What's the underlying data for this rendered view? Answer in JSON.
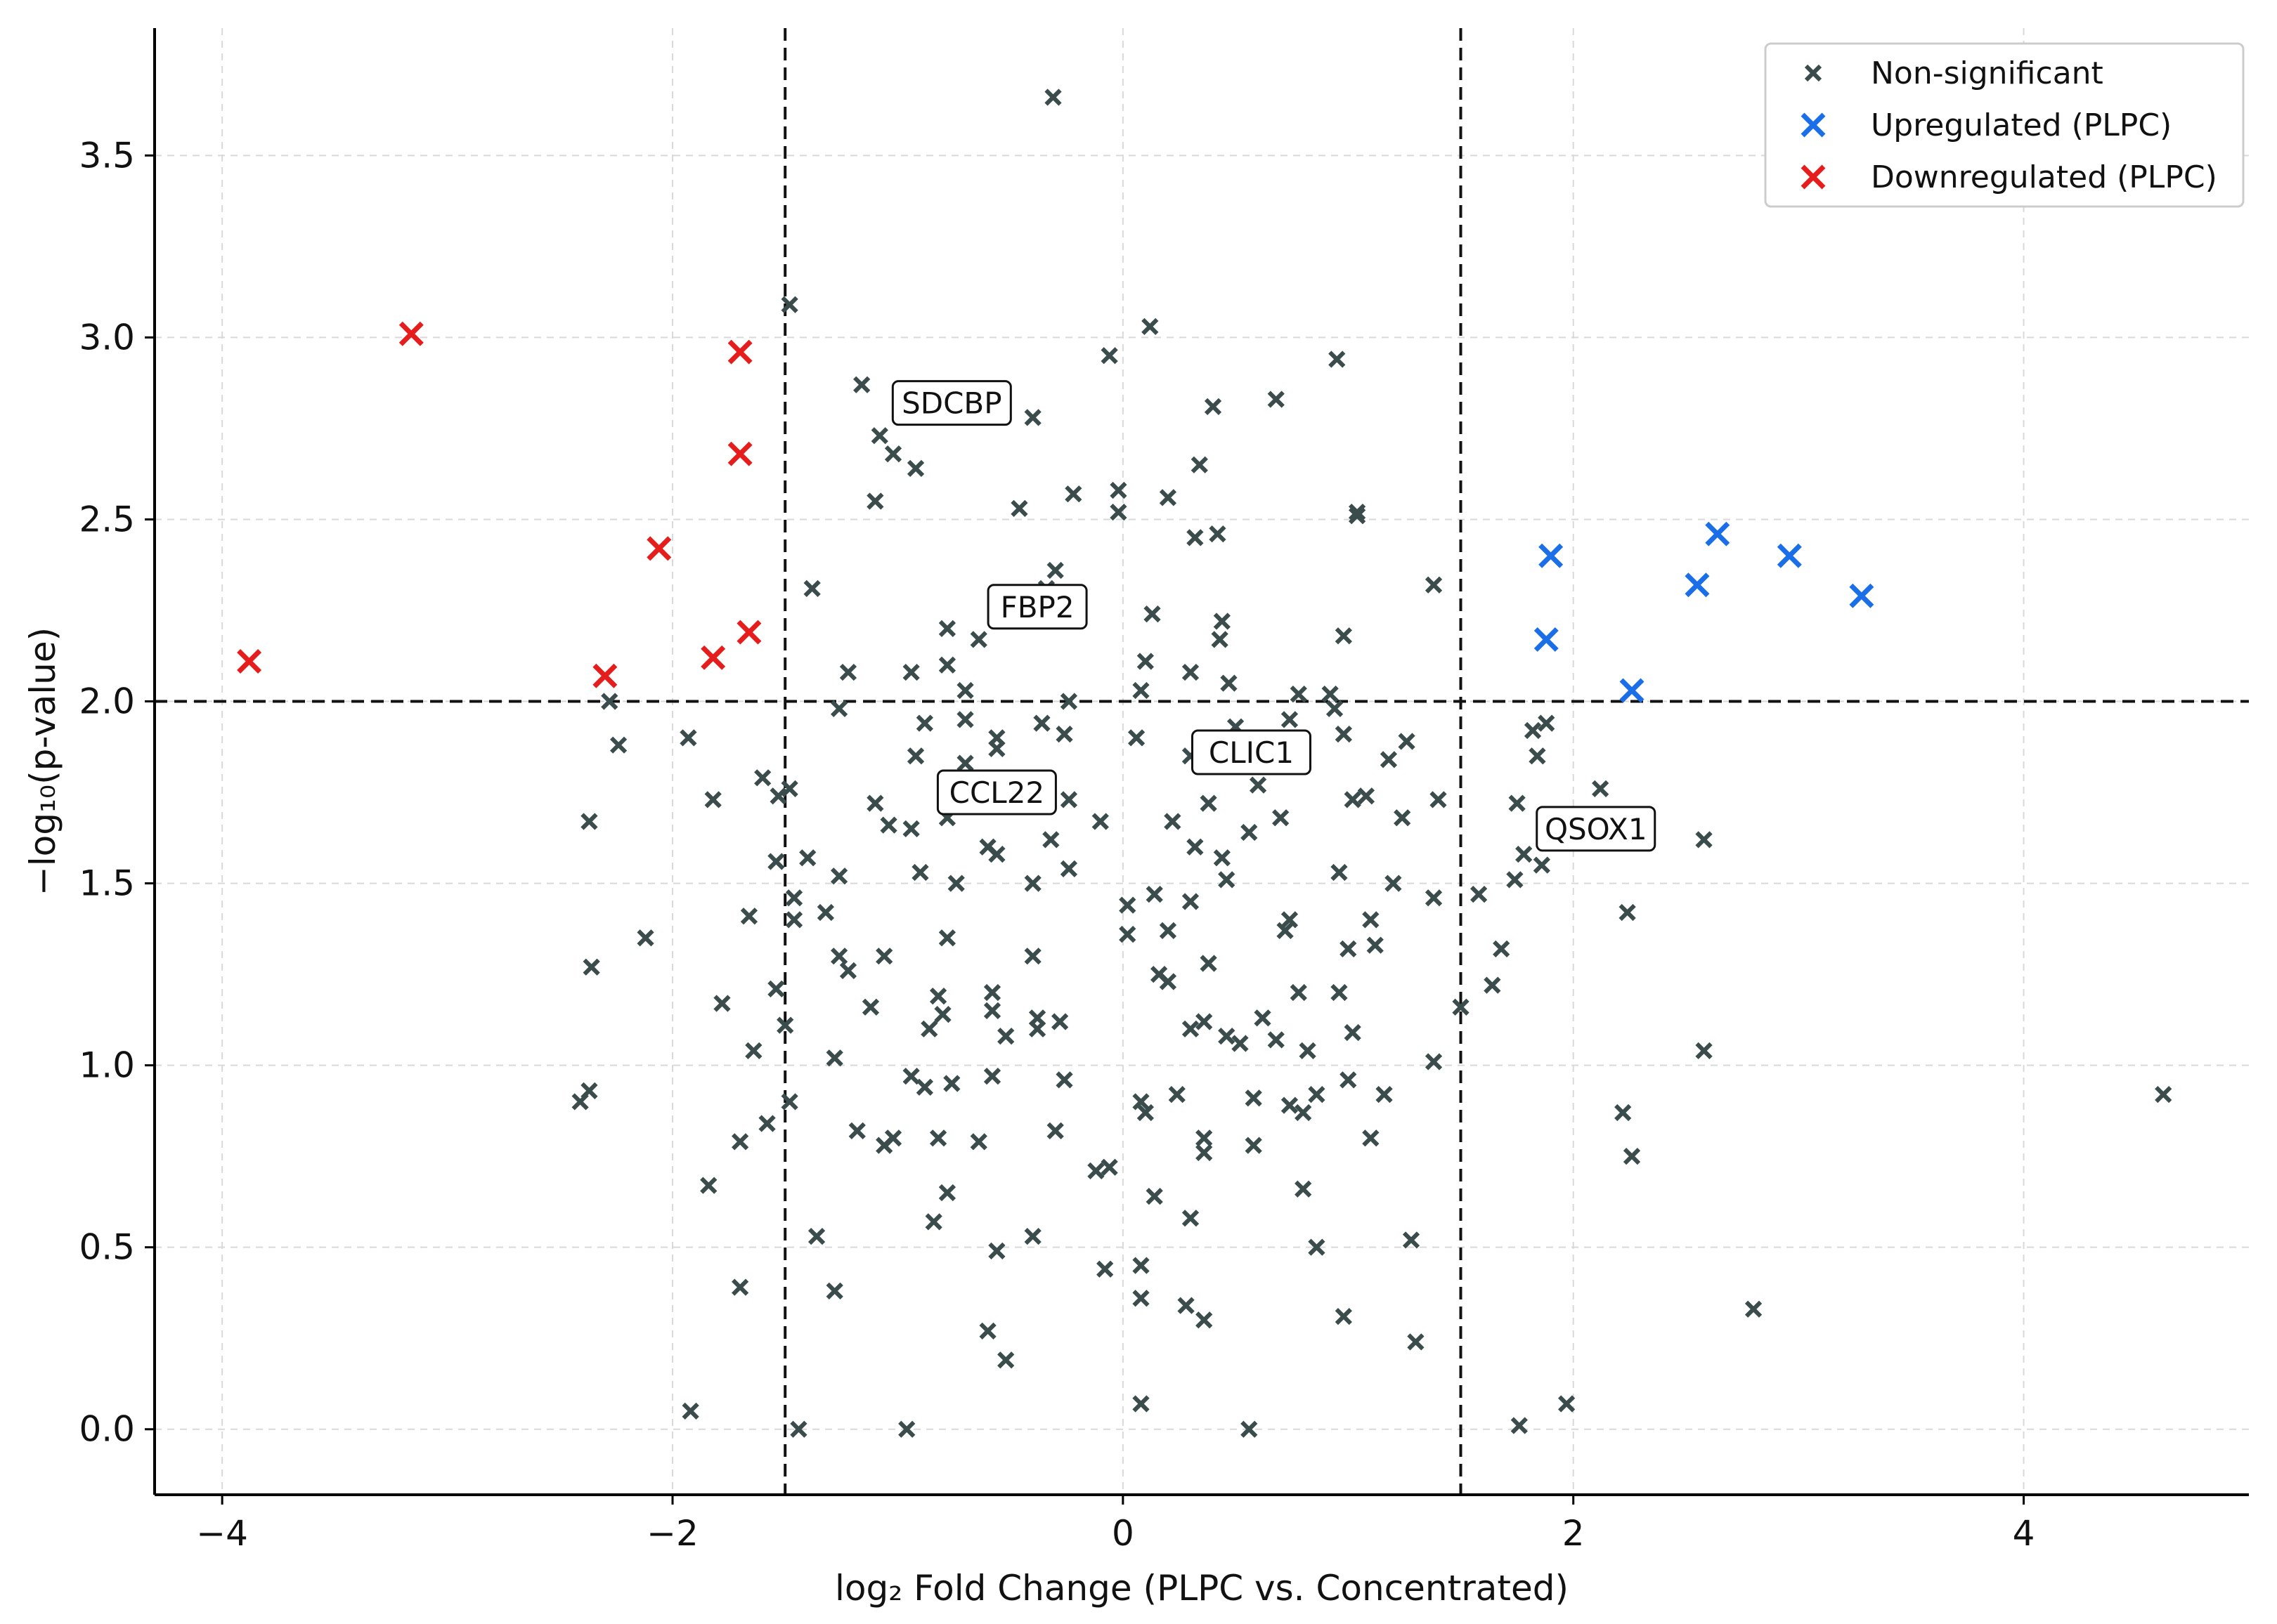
{
  "chart_data": {
    "type": "scatter",
    "title": "",
    "xlabel": "log₂ Fold Change (PLPC vs. Concentrated)",
    "ylabel": "−log₁₀(p-value)",
    "xlim": [
      -4.3,
      5.0
    ],
    "ylim": [
      -0.18,
      3.85
    ],
    "x_ticks": [
      -4,
      -2,
      0,
      2,
      4
    ],
    "x_tick_labels": [
      "−4",
      "−2",
      "0",
      "2",
      "4"
    ],
    "y_ticks": [
      0.0,
      0.5,
      1.0,
      1.5,
      2.0,
      2.5,
      3.0,
      3.5
    ],
    "y_tick_labels": [
      "0.0",
      "0.5",
      "1.0",
      "1.5",
      "2.0",
      "2.5",
      "3.0",
      "3.5"
    ],
    "grid": true,
    "legend_position": "top-right",
    "colors": {
      "nonsig": "#3b4c4c",
      "up": "#1a6fe8",
      "down": "#e51d1d",
      "threshold": "#111111",
      "grid": "#d9d9d9"
    },
    "thresholds": {
      "x": [
        -1.5,
        1.5
      ],
      "y": 2.0
    },
    "series": [
      {
        "name": "Non-significant",
        "color": "#3b4c4c",
        "points": [
          [
            -0.31,
            3.66
          ],
          [
            -1.48,
            3.09
          ],
          [
            0.12,
            3.03
          ],
          [
            -0.06,
            2.95
          ],
          [
            0.95,
            2.94
          ],
          [
            -1.16,
            2.87
          ],
          [
            0.68,
            2.83
          ],
          [
            0.4,
            2.81
          ],
          [
            -0.4,
            2.78
          ],
          [
            -1.08,
            2.73
          ],
          [
            -1.02,
            2.68
          ],
          [
            -0.92,
            2.64
          ],
          [
            0.34,
            2.65
          ],
          [
            -0.02,
            2.58
          ],
          [
            -0.22,
            2.57
          ],
          [
            0.2,
            2.56
          ],
          [
            -1.1,
            2.55
          ],
          [
            -0.02,
            2.52
          ],
          [
            -0.46,
            2.53
          ],
          [
            1.04,
            2.52
          ],
          [
            1.04,
            2.51
          ],
          [
            0.32,
            2.45
          ],
          [
            0.42,
            2.46
          ],
          [
            -0.3,
            2.36
          ],
          [
            -0.34,
            2.31
          ],
          [
            -1.38,
            2.31
          ],
          [
            1.38,
            2.32
          ],
          [
            0.13,
            2.24
          ],
          [
            0.44,
            2.22
          ],
          [
            0.43,
            2.17
          ],
          [
            -0.78,
            2.2
          ],
          [
            0.98,
            2.18
          ],
          [
            -0.64,
            2.17
          ],
          [
            0.1,
            2.11
          ],
          [
            -1.22,
            2.08
          ],
          [
            -0.78,
            2.1
          ],
          [
            -0.94,
            2.08
          ],
          [
            0.3,
            2.08
          ],
          [
            0.47,
            2.05
          ],
          [
            0.08,
            2.03
          ],
          [
            -0.7,
            2.03
          ],
          [
            -0.24,
            2.0
          ],
          [
            0.78,
            2.02
          ],
          [
            0.92,
            2.02
          ],
          [
            -1.26,
            1.98
          ],
          [
            0.94,
            1.98
          ],
          [
            -2.28,
            2.0
          ],
          [
            -0.88,
            1.94
          ],
          [
            -0.7,
            1.95
          ],
          [
            -0.36,
            1.94
          ],
          [
            0.5,
            1.93
          ],
          [
            0.74,
            1.95
          ],
          [
            -0.26,
            1.91
          ],
          [
            0.98,
            1.91
          ],
          [
            -1.93,
            1.9
          ],
          [
            -0.56,
            1.9
          ],
          [
            0.06,
            1.9
          ],
          [
            -0.56,
            1.87
          ],
          [
            1.26,
            1.89
          ],
          [
            -2.24,
            1.88
          ],
          [
            -0.92,
            1.85
          ],
          [
            -0.7,
            1.83
          ],
          [
            0.3,
            1.85
          ],
          [
            1.18,
            1.84
          ],
          [
            1.82,
            1.92
          ],
          [
            1.88,
            1.94
          ],
          [
            1.84,
            1.85
          ],
          [
            -1.6,
            1.79
          ],
          [
            -1.48,
            1.76
          ],
          [
            -1.53,
            1.74
          ],
          [
            0.6,
            1.77
          ],
          [
            0.38,
            1.72
          ],
          [
            1.02,
            1.73
          ],
          [
            1.08,
            1.74
          ],
          [
            1.4,
            1.73
          ],
          [
            2.12,
            1.76
          ],
          [
            -2.37,
            1.67
          ],
          [
            -1.82,
            1.73
          ],
          [
            -1.1,
            1.72
          ],
          [
            -0.24,
            1.73
          ],
          [
            -0.78,
            1.68
          ],
          [
            -0.94,
            1.65
          ],
          [
            -0.1,
            1.67
          ],
          [
            0.22,
            1.67
          ],
          [
            0.7,
            1.68
          ],
          [
            1.24,
            1.68
          ],
          [
            1.75,
            1.72
          ],
          [
            -1.04,
            1.66
          ],
          [
            0.56,
            1.64
          ],
          [
            -0.6,
            1.6
          ],
          [
            -0.32,
            1.62
          ],
          [
            0.32,
            1.6
          ],
          [
            1.78,
            1.58
          ],
          [
            1.86,
            1.55
          ],
          [
            2.58,
            1.62
          ],
          [
            -1.54,
            1.56
          ],
          [
            -1.4,
            1.57
          ],
          [
            -0.56,
            1.58
          ],
          [
            0.44,
            1.57
          ],
          [
            -0.9,
            1.53
          ],
          [
            -0.24,
            1.54
          ],
          [
            0.96,
            1.53
          ],
          [
            1.2,
            1.5
          ],
          [
            1.74,
            1.51
          ],
          [
            -1.46,
            1.46
          ],
          [
            -1.26,
            1.52
          ],
          [
            -0.74,
            1.5
          ],
          [
            -0.4,
            1.5
          ],
          [
            0.14,
            1.47
          ],
          [
            0.46,
            1.51
          ],
          [
            1.38,
            1.46
          ],
          [
            1.58,
            1.47
          ],
          [
            -1.66,
            1.41
          ],
          [
            -1.46,
            1.4
          ],
          [
            -1.32,
            1.42
          ],
          [
            0.02,
            1.44
          ],
          [
            0.3,
            1.45
          ],
          [
            0.74,
            1.4
          ],
          [
            1.1,
            1.4
          ],
          [
            2.24,
            1.42
          ],
          [
            -2.12,
            1.35
          ],
          [
            -1.26,
            1.3
          ],
          [
            -0.78,
            1.35
          ],
          [
            0.02,
            1.36
          ],
          [
            0.2,
            1.37
          ],
          [
            1.0,
            1.32
          ],
          [
            1.12,
            1.33
          ],
          [
            1.68,
            1.32
          ],
          [
            -2.36,
            1.27
          ],
          [
            -1.22,
            1.26
          ],
          [
            -1.06,
            1.3
          ],
          [
            -0.4,
            1.3
          ],
          [
            0.38,
            1.28
          ],
          [
            0.72,
            1.37
          ],
          [
            1.64,
            1.22
          ],
          [
            -1.54,
            1.21
          ],
          [
            -0.82,
            1.19
          ],
          [
            -0.58,
            1.2
          ],
          [
            0.16,
            1.25
          ],
          [
            0.78,
            1.2
          ],
          [
            0.96,
            1.2
          ],
          [
            1.5,
            1.16
          ],
          [
            -1.78,
            1.17
          ],
          [
            -1.12,
            1.16
          ],
          [
            -0.8,
            1.14
          ],
          [
            -0.58,
            1.15
          ],
          [
            -0.38,
            1.13
          ],
          [
            -0.28,
            1.12
          ],
          [
            0.2,
            1.23
          ],
          [
            0.62,
            1.13
          ],
          [
            -1.5,
            1.11
          ],
          [
            -0.86,
            1.1
          ],
          [
            -0.52,
            1.08
          ],
          [
            -0.38,
            1.1
          ],
          [
            0.3,
            1.1
          ],
          [
            0.46,
            1.08
          ],
          [
            0.68,
            1.07
          ],
          [
            1.02,
            1.09
          ],
          [
            -1.64,
            1.04
          ],
          [
            -1.28,
            1.02
          ],
          [
            0.36,
            1.12
          ],
          [
            0.52,
            1.06
          ],
          [
            0.82,
            1.04
          ],
          [
            1.38,
            1.01
          ],
          [
            2.58,
            1.04
          ],
          [
            -2.41,
            0.9
          ],
          [
            -2.37,
            0.93
          ],
          [
            -1.48,
            0.9
          ],
          [
            -0.94,
            0.97
          ],
          [
            -0.88,
            0.94
          ],
          [
            -0.76,
            0.95
          ],
          [
            -0.58,
            0.97
          ],
          [
            -0.26,
            0.96
          ],
          [
            0.08,
            0.9
          ],
          [
            0.24,
            0.92
          ],
          [
            0.58,
            0.91
          ],
          [
            0.86,
            0.92
          ],
          [
            1.0,
            0.96
          ],
          [
            1.16,
            0.92
          ],
          [
            4.62,
            0.92
          ],
          [
            -1.58,
            0.84
          ],
          [
            -1.18,
            0.82
          ],
          [
            -1.02,
            0.8
          ],
          [
            -0.82,
            0.8
          ],
          [
            -0.3,
            0.82
          ],
          [
            0.1,
            0.87
          ],
          [
            0.36,
            0.8
          ],
          [
            0.74,
            0.89
          ],
          [
            0.8,
            0.87
          ],
          [
            1.1,
            0.8
          ],
          [
            2.22,
            0.87
          ],
          [
            -1.7,
            0.79
          ],
          [
            -1.06,
            0.78
          ],
          [
            -0.64,
            0.79
          ],
          [
            -0.12,
            0.71
          ],
          [
            -0.06,
            0.72
          ],
          [
            0.36,
            0.76
          ],
          [
            0.58,
            0.78
          ],
          [
            2.26,
            0.75
          ],
          [
            -1.84,
            0.67
          ],
          [
            -0.78,
            0.65
          ],
          [
            0.14,
            0.64
          ],
          [
            0.8,
            0.66
          ],
          [
            -0.84,
            0.57
          ],
          [
            0.3,
            0.58
          ],
          [
            -1.36,
            0.53
          ],
          [
            -0.4,
            0.53
          ],
          [
            0.86,
            0.5
          ],
          [
            1.28,
            0.52
          ],
          [
            -0.56,
            0.49
          ],
          [
            -0.08,
            0.44
          ],
          [
            0.08,
            0.45
          ],
          [
            0.08,
            0.36
          ],
          [
            -1.7,
            0.39
          ],
          [
            -1.28,
            0.38
          ],
          [
            0.28,
            0.34
          ],
          [
            0.36,
            0.3
          ],
          [
            0.98,
            0.31
          ],
          [
            2.8,
            0.33
          ],
          [
            -0.6,
            0.27
          ],
          [
            1.3,
            0.24
          ],
          [
            -0.52,
            0.19
          ],
          [
            0.08,
            0.07
          ],
          [
            1.97,
            0.07
          ],
          [
            -1.92,
            0.05
          ],
          [
            1.76,
            0.01
          ],
          [
            -1.44,
            0.0
          ],
          [
            -0.96,
            0.0
          ],
          [
            0.56,
            0.0
          ]
        ]
      },
      {
        "name": "Upregulated (PLPC)",
        "color": "#1a6fe8",
        "points": [
          [
            1.9,
            2.4
          ],
          [
            1.88,
            2.17
          ],
          [
            2.26,
            2.03
          ],
          [
            2.55,
            2.32
          ],
          [
            2.64,
            2.46
          ],
          [
            2.96,
            2.4
          ],
          [
            3.28,
            2.29
          ]
        ]
      },
      {
        "name": "Downregulated (PLPC)",
        "color": "#e51d1d",
        "points": [
          [
            -3.88,
            2.11
          ],
          [
            -3.16,
            3.01
          ],
          [
            -2.3,
            2.07
          ],
          [
            -2.06,
            2.42
          ],
          [
            -1.82,
            2.12
          ],
          [
            -1.7,
            2.96
          ],
          [
            -1.7,
            2.68
          ],
          [
            -1.66,
            2.19
          ]
        ]
      }
    ],
    "annotations": [
      {
        "text": "SDCBP",
        "x": -0.76,
        "y": 2.82
      },
      {
        "text": "FBP2",
        "x": -0.38,
        "y": 2.26
      },
      {
        "text": "CLIC1",
        "x": 0.57,
        "y": 1.86
      },
      {
        "text": "CCL22",
        "x": -0.56,
        "y": 1.75
      },
      {
        "text": "QSOX1",
        "x": 2.1,
        "y": 1.65
      }
    ]
  }
}
